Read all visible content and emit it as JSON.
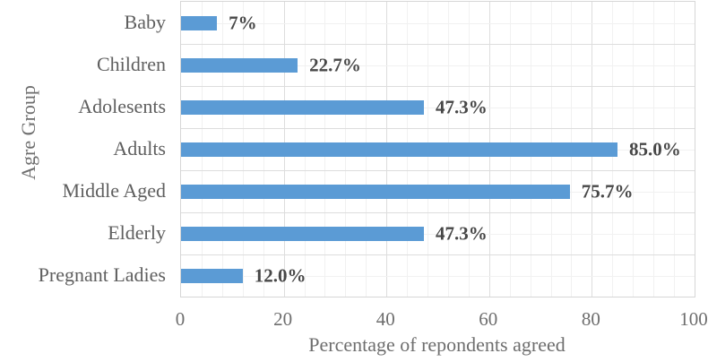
{
  "chart_data": {
    "type": "bar",
    "orientation": "horizontal",
    "title": "",
    "xlabel": "Percentage of repondents agreed",
    "ylabel": "Agre Group",
    "categories": [
      "Baby",
      "Children",
      "Adolesents",
      "Adults",
      "Middle Aged",
      "Elderly",
      "Pregnant Ladies"
    ],
    "values": [
      7,
      22.7,
      47.3,
      85.0,
      75.7,
      47.3,
      12.0
    ],
    "data_labels": [
      "7%",
      "22.7%",
      "47.3%",
      "85.0%",
      "75.7%",
      "47.3%",
      "12.0%"
    ],
    "xlim": [
      0,
      100
    ],
    "xticks": [
      0,
      20,
      40,
      60,
      80,
      100
    ],
    "x_minor_unit": 4,
    "grid": true,
    "legend": false,
    "colors": {
      "bar": "#5B9BD5",
      "data_label": "#474747",
      "category_label": "#5f5f5f",
      "tick_label": "#6e6e6e",
      "axis_title": "#6e6e6e",
      "major_grid": "#dddddd",
      "minor_grid": "#f1f1f1",
      "plot_border": "#d6d6d6",
      "background": "#ffffff"
    }
  }
}
